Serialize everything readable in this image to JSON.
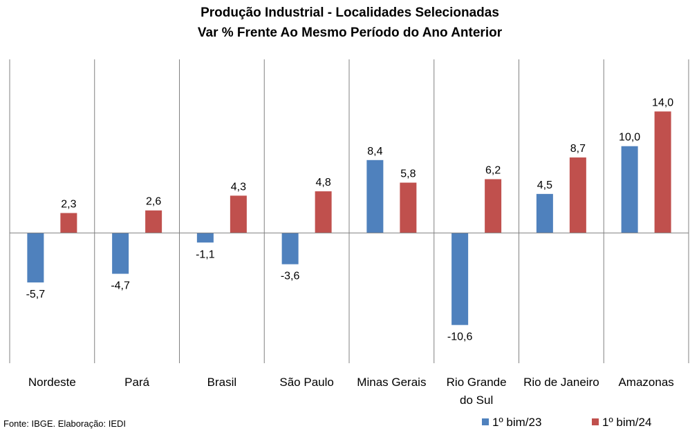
{
  "chart_data": {
    "type": "bar",
    "title": "Produção Industrial - Localidades Selecionadas",
    "subtitle": "Var % Frente Ao Mesmo Período do Ano Anterior",
    "categories": [
      [
        "Nordeste"
      ],
      [
        "Pará"
      ],
      [
        "Brasil"
      ],
      [
        "São Paulo"
      ],
      [
        "Minas Gerais"
      ],
      [
        "Rio Grande",
        "do Sul"
      ],
      [
        "Rio de Janeiro"
      ],
      [
        "Amazonas"
      ]
    ],
    "series": [
      {
        "name": "1º bim/23",
        "color": "#4F81BD",
        "values": [
          -5.7,
          -4.7,
          -1.1,
          -3.6,
          8.4,
          -10.6,
          4.5,
          10.0
        ],
        "labels": [
          "-5,7",
          "-4,7",
          "-1,1",
          "-3,6",
          "8,4",
          "-10,6",
          "4,5",
          "10,0"
        ]
      },
      {
        "name": "1º bim/24",
        "color": "#C0504D",
        "values": [
          2.3,
          2.6,
          4.3,
          4.8,
          5.8,
          6.2,
          8.7,
          14.0
        ],
        "labels": [
          "2,3",
          "2,6",
          "4,3",
          "4,8",
          "5,8",
          "6,2",
          "8,7",
          "14,0"
        ]
      }
    ],
    "ylim": [
      -15,
      20
    ],
    "xlabel": "",
    "ylabel": "",
    "grid": "vertical category separators",
    "legend": "bottom-right"
  },
  "source": "Fonte: IBGE. Elaboração: IEDI"
}
